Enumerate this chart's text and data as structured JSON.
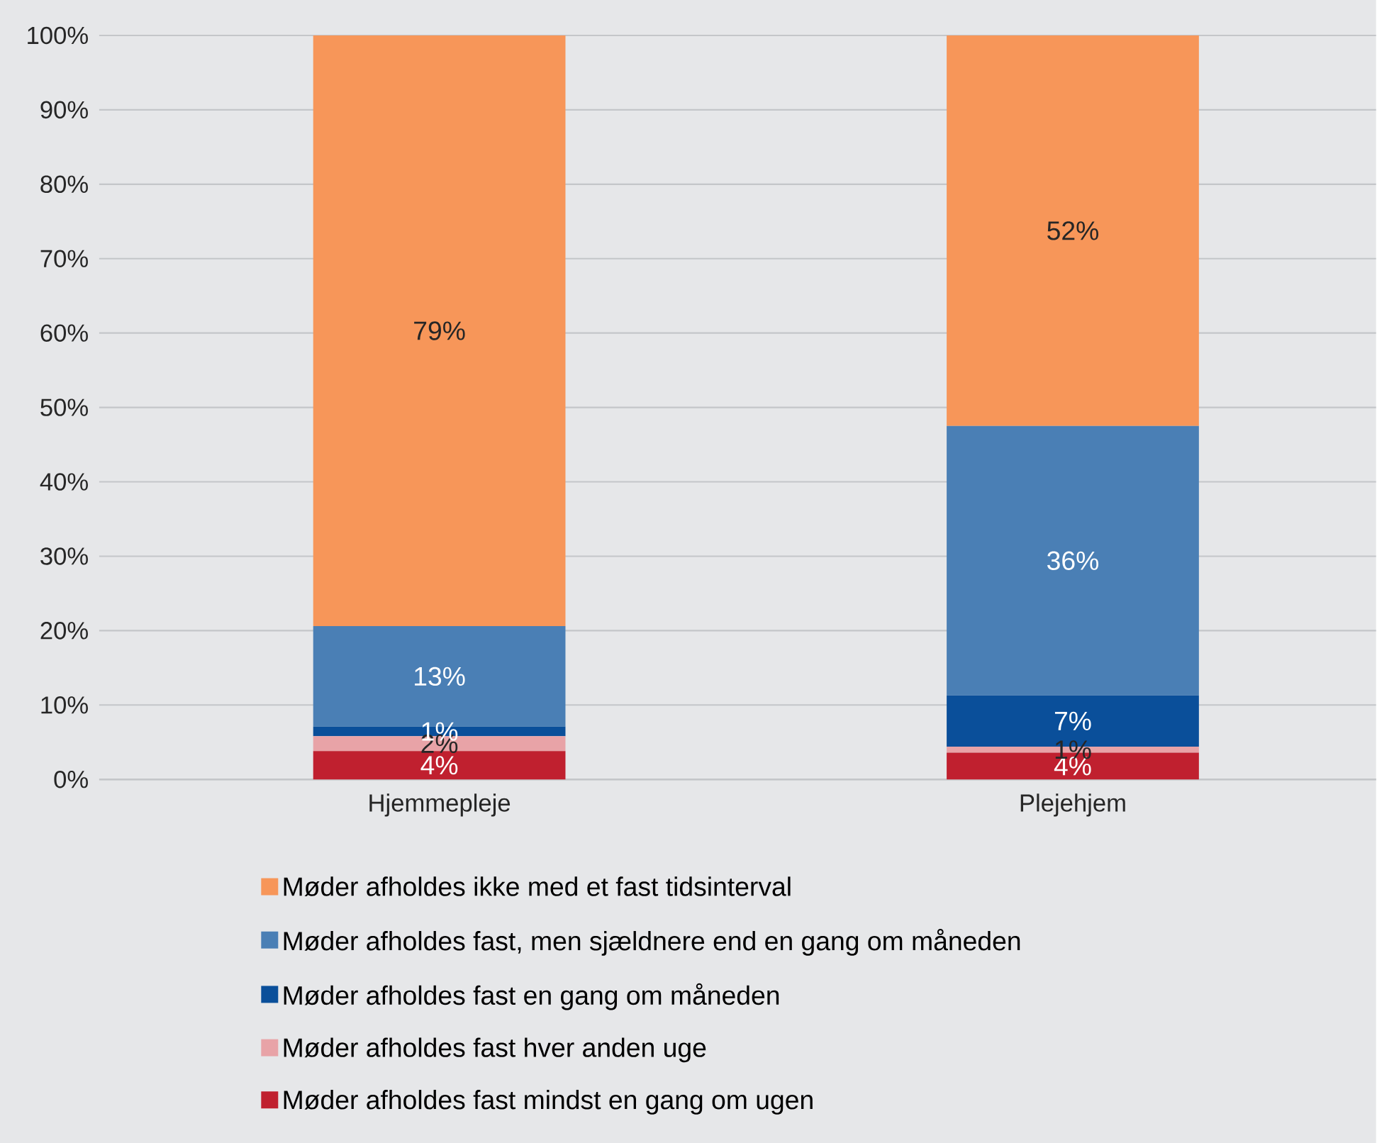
{
  "chart_data": {
    "type": "bar",
    "stacked": true,
    "categories": [
      "Hjemmepleje",
      "Plejehjem"
    ],
    "series": [
      {
        "name": "Møder afholdes fast mindst en gang om ugen",
        "color": "#c0202f",
        "values": [
          3.8,
          3.6
        ],
        "value_labels": [
          "4%",
          "4%"
        ]
      },
      {
        "name": "Møder afholdes fast hver anden uge",
        "color": "#e8a3a7",
        "values": [
          2.0,
          0.8
        ],
        "value_labels": [
          "2%",
          "1%"
        ]
      },
      {
        "name": "Møder afholdes fast en gang om måneden",
        "color": "#0a4f9a",
        "values": [
          1.3,
          6.9
        ],
        "value_labels": [
          "1%",
          "7%"
        ]
      },
      {
        "name": "Møder afholdes fast, men sjældnere end en gang om måneden",
        "color": "#4a7fb5",
        "values": [
          13.5,
          36.2
        ],
        "value_labels": [
          "13%",
          "36%"
        ]
      },
      {
        "name": "Møder afholdes ikke med et fast tidsinterval",
        "color": "#f79659",
        "values": [
          79.4,
          52.5
        ],
        "value_labels": [
          "79%",
          "52%"
        ]
      }
    ],
    "ylim": [
      0,
      100
    ],
    "yticks": [
      {
        "value": 0,
        "label": "0%"
      },
      {
        "value": 10,
        "label": "10%"
      },
      {
        "value": 20,
        "label": "20%"
      },
      {
        "value": 30,
        "label": "30%"
      },
      {
        "value": 40,
        "label": "40%"
      },
      {
        "value": 50,
        "label": "50%"
      },
      {
        "value": 60,
        "label": "60%"
      },
      {
        "value": 70,
        "label": "70%"
      },
      {
        "value": 80,
        "label": "80%"
      },
      {
        "value": 90,
        "label": "90%"
      },
      {
        "value": 100,
        "label": "100%"
      }
    ],
    "grid": "y",
    "legend": "bottom"
  }
}
